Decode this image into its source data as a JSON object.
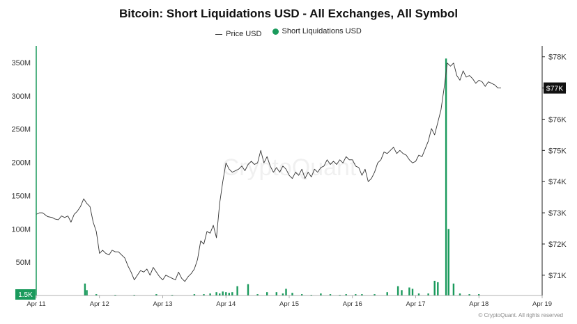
{
  "chart_data": {
    "type": "bar+line",
    "title": "Bitcoin: Short Liquidations USD - All Exchanges, All Symbol",
    "legend": [
      {
        "name": "Price USD",
        "marker": "line",
        "color": "#333333"
      },
      {
        "name": "Short Liquidations USD",
        "marker": "dot",
        "color": "#1a9a5c"
      }
    ],
    "watermark": "CryptoQuant",
    "x_ticks": [
      "Apr 11",
      "Apr 12",
      "Apr 13",
      "Apr 14",
      "Apr 15",
      "Apr 16",
      "Apr 17",
      "Apr 18",
      "Apr 19"
    ],
    "x_range": [
      0,
      8
    ],
    "y_left": {
      "ticks": [
        "50M",
        "100M",
        "150M",
        "200M",
        "250M",
        "300M",
        "350M"
      ],
      "tick_values": [
        50,
        100,
        150,
        200,
        250,
        300,
        350
      ],
      "range": [
        0,
        375
      ],
      "unit": "M USD",
      "current_label": "1.5K"
    },
    "y_right": {
      "ticks": [
        "$71K",
        "$72K",
        "$73K",
        "$74K",
        "$75K",
        "$76K",
        "$77K",
        "$78K"
      ],
      "tick_values": [
        71,
        72,
        73,
        74,
        75,
        76,
        77,
        78
      ],
      "range": [
        70.35,
        78.35
      ],
      "unit": "K USD",
      "current_label": "$77K"
    },
    "legend_position": "top-center",
    "grid": false,
    "series": [
      {
        "name": "Short Liquidations USD",
        "type": "bar",
        "axis": "left",
        "color": "#1a9a5c",
        "points": [
          [
            0.77,
            18
          ],
          [
            0.8,
            8
          ],
          [
            0.95,
            2
          ],
          [
            1.25,
            1
          ],
          [
            1.55,
            1
          ],
          [
            1.9,
            2
          ],
          [
            2.15,
            1
          ],
          [
            2.5,
            2
          ],
          [
            2.65,
            2
          ],
          [
            2.75,
            3
          ],
          [
            2.85,
            5
          ],
          [
            2.9,
            3
          ],
          [
            2.95,
            6
          ],
          [
            3.0,
            5
          ],
          [
            3.05,
            4
          ],
          [
            3.1,
            5
          ],
          [
            3.18,
            14
          ],
          [
            3.35,
            17
          ],
          [
            3.5,
            2
          ],
          [
            3.65,
            5
          ],
          [
            3.8,
            5
          ],
          [
            3.9,
            3
          ],
          [
            3.95,
            10
          ],
          [
            4.05,
            4
          ],
          [
            4.2,
            2
          ],
          [
            4.35,
            1
          ],
          [
            4.5,
            3
          ],
          [
            4.65,
            2
          ],
          [
            4.8,
            1
          ],
          [
            4.9,
            2
          ],
          [
            5.05,
            2
          ],
          [
            5.15,
            2
          ],
          [
            5.35,
            2
          ],
          [
            5.55,
            5
          ],
          [
            5.72,
            14
          ],
          [
            5.78,
            8
          ],
          [
            5.9,
            12
          ],
          [
            5.95,
            10
          ],
          [
            6.05,
            3
          ],
          [
            6.2,
            3
          ],
          [
            6.3,
            22
          ],
          [
            6.35,
            20
          ],
          [
            6.48,
            356
          ],
          [
            6.52,
            100
          ],
          [
            6.6,
            18
          ],
          [
            6.7,
            3
          ],
          [
            6.85,
            2
          ],
          [
            7.0,
            2
          ]
        ]
      },
      {
        "name": "Price USD",
        "type": "line",
        "axis": "right",
        "color": "#333333",
        "points": [
          [
            0,
            72.95
          ],
          [
            0.05,
            73.0
          ],
          [
            0.1,
            73.0
          ],
          [
            0.18,
            72.88
          ],
          [
            0.25,
            72.85
          ],
          [
            0.3,
            72.8
          ],
          [
            0.35,
            72.78
          ],
          [
            0.4,
            72.9
          ],
          [
            0.45,
            72.85
          ],
          [
            0.5,
            72.9
          ],
          [
            0.55,
            72.7
          ],
          [
            0.6,
            72.95
          ],
          [
            0.65,
            73.05
          ],
          [
            0.7,
            73.2
          ],
          [
            0.75,
            73.45
          ],
          [
            0.8,
            73.3
          ],
          [
            0.85,
            73.2
          ],
          [
            0.9,
            72.7
          ],
          [
            0.95,
            72.4
          ],
          [
            1.0,
            71.7
          ],
          [
            1.05,
            71.8
          ],
          [
            1.1,
            71.7
          ],
          [
            1.15,
            71.65
          ],
          [
            1.2,
            71.8
          ],
          [
            1.25,
            71.75
          ],
          [
            1.3,
            71.75
          ],
          [
            1.35,
            71.65
          ],
          [
            1.4,
            71.55
          ],
          [
            1.45,
            71.3
          ],
          [
            1.5,
            71.1
          ],
          [
            1.55,
            70.85
          ],
          [
            1.6,
            71.0
          ],
          [
            1.65,
            71.15
          ],
          [
            1.7,
            71.1
          ],
          [
            1.75,
            71.2
          ],
          [
            1.8,
            71.0
          ],
          [
            1.85,
            71.25
          ],
          [
            1.9,
            71.1
          ],
          [
            1.95,
            70.95
          ],
          [
            2.0,
            70.85
          ],
          [
            2.05,
            71.0
          ],
          [
            2.1,
            70.95
          ],
          [
            2.15,
            70.9
          ],
          [
            2.2,
            70.85
          ],
          [
            2.25,
            71.1
          ],
          [
            2.3,
            70.9
          ],
          [
            2.35,
            70.8
          ],
          [
            2.4,
            70.95
          ],
          [
            2.45,
            71.05
          ],
          [
            2.5,
            71.2
          ],
          [
            2.55,
            71.5
          ],
          [
            2.6,
            72.1
          ],
          [
            2.65,
            72.0
          ],
          [
            2.7,
            72.4
          ],
          [
            2.75,
            72.35
          ],
          [
            2.8,
            72.6
          ],
          [
            2.85,
            72.2
          ],
          [
            2.9,
            73.3
          ],
          [
            2.95,
            74.0
          ],
          [
            3.0,
            74.6
          ],
          [
            3.05,
            74.4
          ],
          [
            3.1,
            74.3
          ],
          [
            3.15,
            74.35
          ],
          [
            3.2,
            74.4
          ],
          [
            3.25,
            74.5
          ],
          [
            3.3,
            74.35
          ],
          [
            3.35,
            74.55
          ],
          [
            3.4,
            74.65
          ],
          [
            3.45,
            74.55
          ],
          [
            3.5,
            74.6
          ],
          [
            3.55,
            75.0
          ],
          [
            3.6,
            74.6
          ],
          [
            3.65,
            74.8
          ],
          [
            3.7,
            74.5
          ],
          [
            3.75,
            74.3
          ],
          [
            3.8,
            74.45
          ],
          [
            3.85,
            74.3
          ],
          [
            3.9,
            74.5
          ],
          [
            3.95,
            74.4
          ],
          [
            4.0,
            74.2
          ],
          [
            4.05,
            74.1
          ],
          [
            4.1,
            74.3
          ],
          [
            4.15,
            74.2
          ],
          [
            4.2,
            74.4
          ],
          [
            4.25,
            74.1
          ],
          [
            4.3,
            74.3
          ],
          [
            4.35,
            74.15
          ],
          [
            4.4,
            74.4
          ],
          [
            4.45,
            74.3
          ],
          [
            4.5,
            74.45
          ],
          [
            4.55,
            74.5
          ],
          [
            4.6,
            74.7
          ],
          [
            4.65,
            74.55
          ],
          [
            4.7,
            74.65
          ],
          [
            4.75,
            74.55
          ],
          [
            4.8,
            74.7
          ],
          [
            4.85,
            74.6
          ],
          [
            4.9,
            74.8
          ],
          [
            4.95,
            74.7
          ],
          [
            5.0,
            74.7
          ],
          [
            5.05,
            74.5
          ],
          [
            5.1,
            74.45
          ],
          [
            5.15,
            74.2
          ],
          [
            5.2,
            74.4
          ],
          [
            5.25,
            74.0
          ],
          [
            5.3,
            74.1
          ],
          [
            5.35,
            74.3
          ],
          [
            5.4,
            74.6
          ],
          [
            5.45,
            74.7
          ],
          [
            5.5,
            74.95
          ],
          [
            5.55,
            74.9
          ],
          [
            5.6,
            75.0
          ],
          [
            5.65,
            75.1
          ],
          [
            5.7,
            74.9
          ],
          [
            5.75,
            75.0
          ],
          [
            5.8,
            74.9
          ],
          [
            5.85,
            74.85
          ],
          [
            5.9,
            74.7
          ],
          [
            5.95,
            74.6
          ],
          [
            6.0,
            74.65
          ],
          [
            6.05,
            74.85
          ],
          [
            6.1,
            74.8
          ],
          [
            6.15,
            75.05
          ],
          [
            6.2,
            75.3
          ],
          [
            6.25,
            75.7
          ],
          [
            6.3,
            75.5
          ],
          [
            6.35,
            75.9
          ],
          [
            6.4,
            76.3
          ],
          [
            6.45,
            77.0
          ],
          [
            6.5,
            77.8
          ],
          [
            6.55,
            77.7
          ],
          [
            6.6,
            77.8
          ],
          [
            6.65,
            77.4
          ],
          [
            6.7,
            77.25
          ],
          [
            6.75,
            77.55
          ],
          [
            6.8,
            77.35
          ],
          [
            6.85,
            77.4
          ],
          [
            6.9,
            77.3
          ],
          [
            6.95,
            77.15
          ],
          [
            7.0,
            77.25
          ],
          [
            7.05,
            77.2
          ],
          [
            7.1,
            77.05
          ],
          [
            7.15,
            77.2
          ],
          [
            7.2,
            77.15
          ],
          [
            7.25,
            77.1
          ],
          [
            7.3,
            77.0
          ],
          [
            7.35,
            77.0
          ]
        ]
      }
    ]
  },
  "footer": "© CryptoQuant. All rights reserved"
}
